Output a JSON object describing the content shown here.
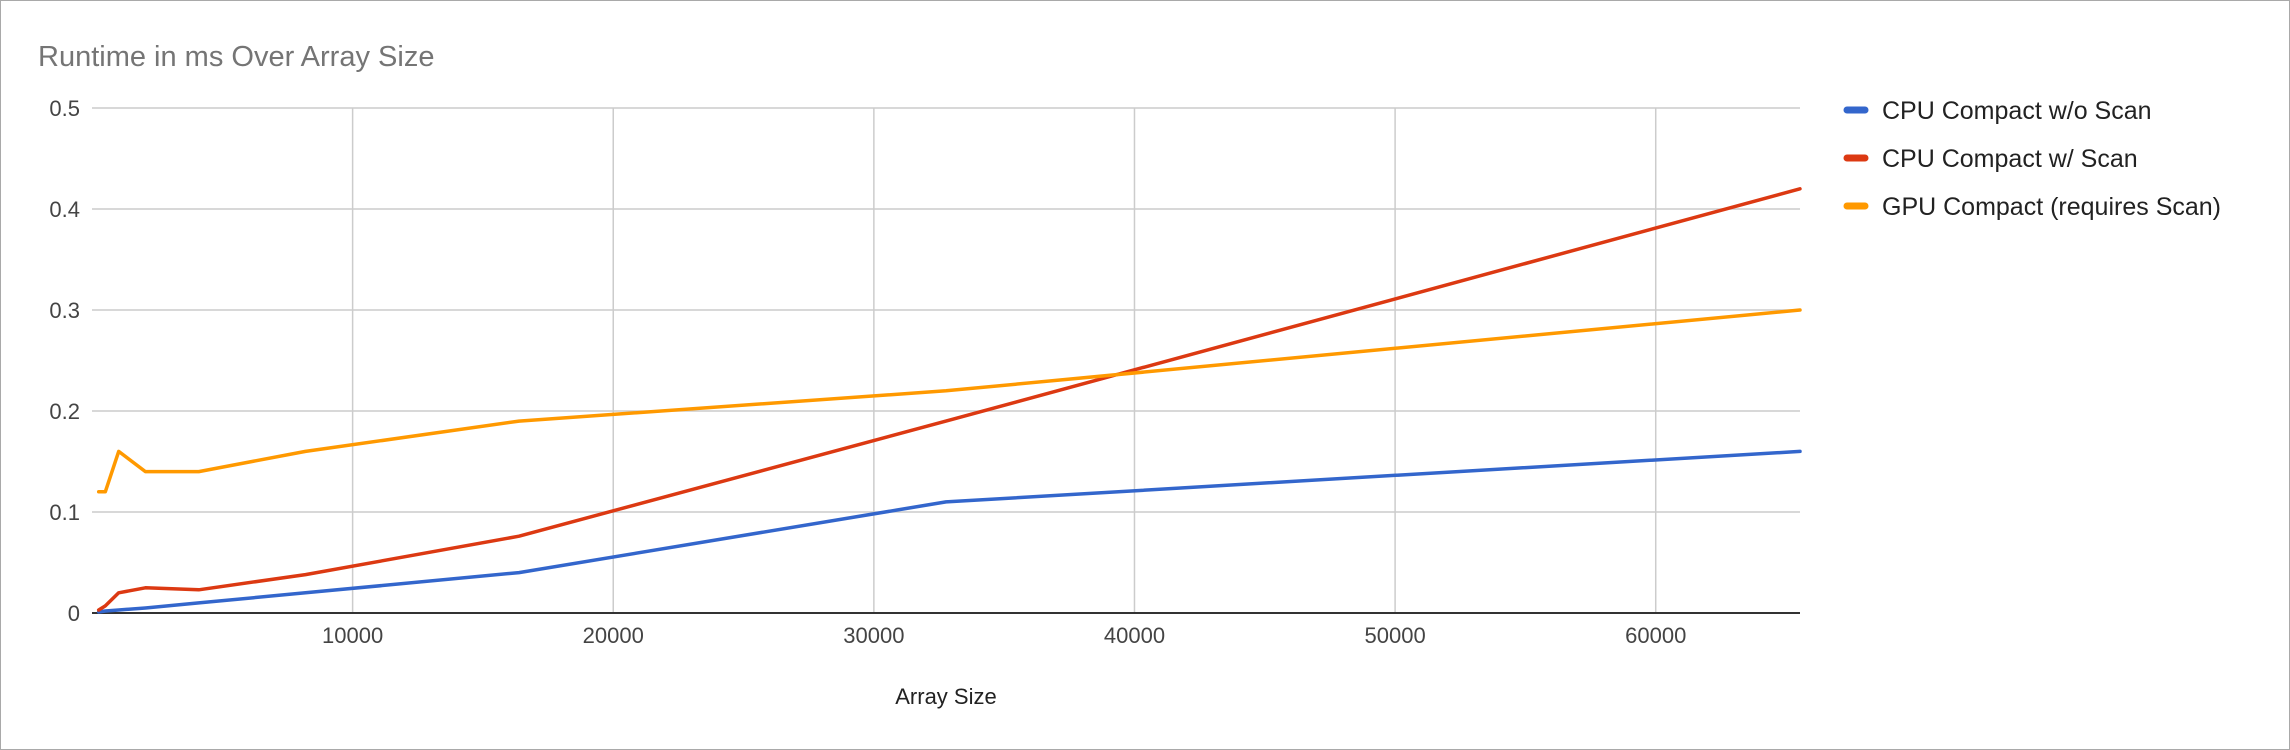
{
  "chart_data": {
    "type": "line",
    "title": "Runtime in ms Over Array Size",
    "xlabel": "Array Size",
    "ylabel": "",
    "xlim": [
      0,
      65536
    ],
    "ylim": [
      0,
      0.5
    ],
    "x_ticks": [
      10000,
      20000,
      30000,
      40000,
      50000,
      60000
    ],
    "y_ticks": [
      0,
      0.1,
      0.2,
      0.3,
      0.4,
      0.5
    ],
    "grid": true,
    "legend": "right",
    "series": [
      {
        "name": "CPU Compact w/o Scan",
        "color": "#3366cc",
        "x": [
          256,
          512,
          1024,
          2048,
          4096,
          8192,
          16384,
          32768,
          65536
        ],
        "y": [
          0.001,
          0.002,
          0.003,
          0.005,
          0.01,
          0.02,
          0.04,
          0.11,
          0.16
        ]
      },
      {
        "name": "CPU Compact w/ Scan",
        "color": "#dc3912",
        "x": [
          256,
          512,
          1024,
          2048,
          4096,
          8192,
          16384,
          32768,
          65536
        ],
        "y": [
          0.003,
          0.007,
          0.02,
          0.025,
          0.023,
          0.038,
          0.076,
          0.19,
          0.42
        ]
      },
      {
        "name": "GPU Compact (requires Scan)",
        "color": "#ff9900",
        "x": [
          256,
          512,
          1024,
          2048,
          4096,
          8192,
          16384,
          32768,
          65536
        ],
        "y": [
          0.12,
          0.12,
          0.16,
          0.14,
          0.14,
          0.16,
          0.19,
          0.22,
          0.3
        ]
      }
    ]
  }
}
